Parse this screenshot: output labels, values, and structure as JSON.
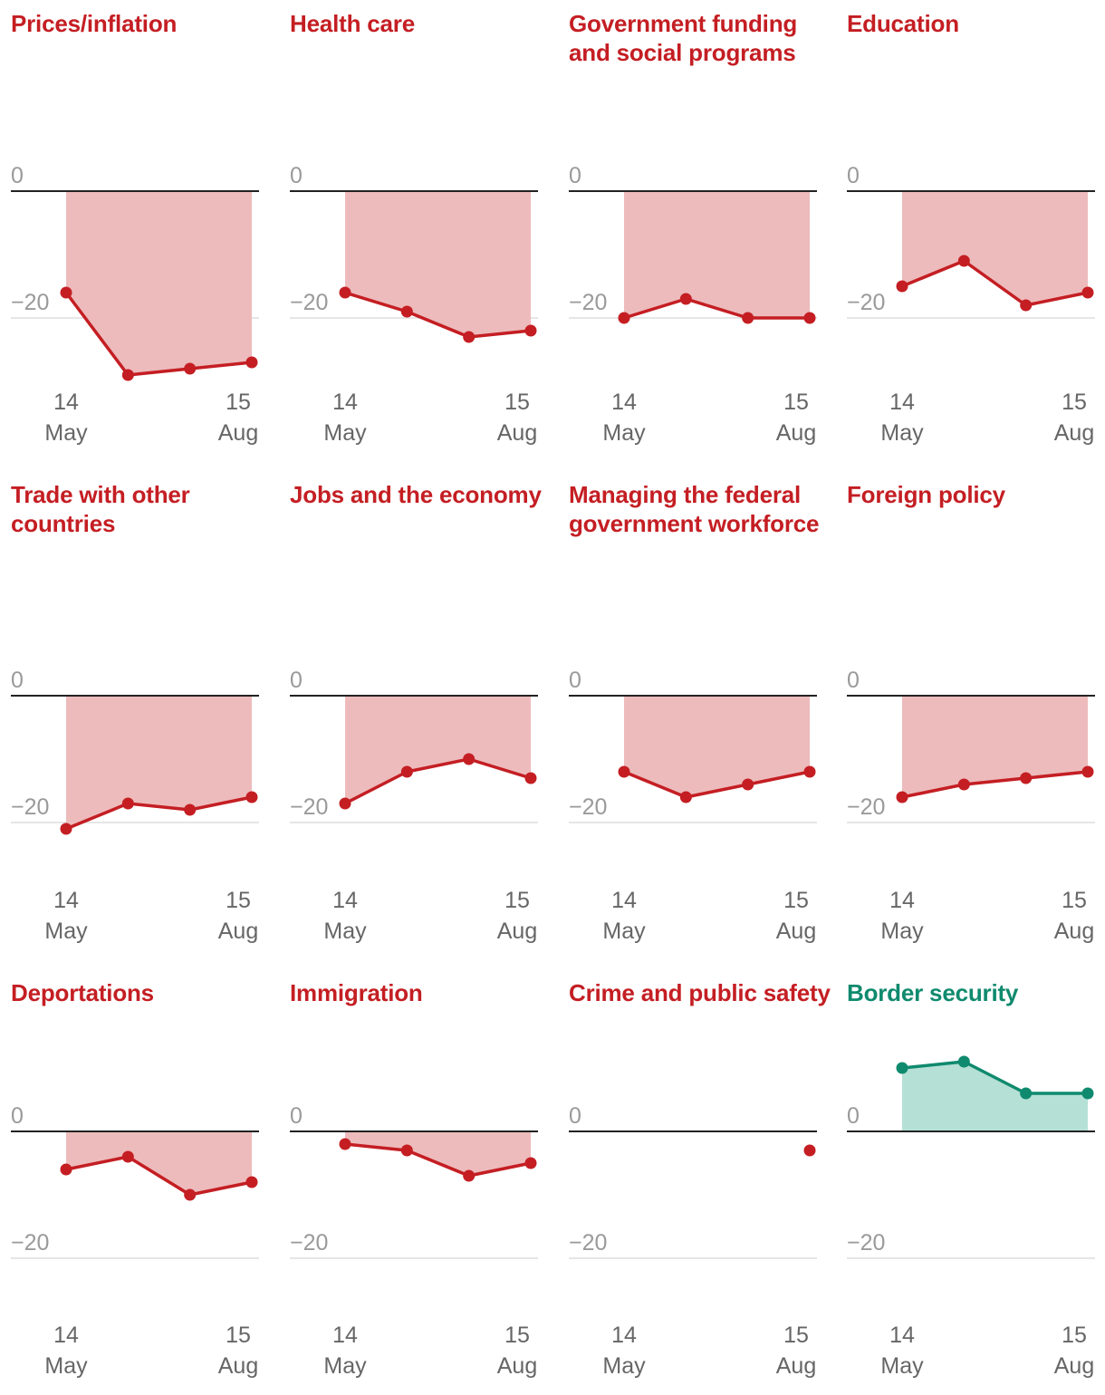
{
  "chart_data": [
    {
      "type": "area",
      "title": "Prices/inflation",
      "x": [
        "14 May",
        "",
        "",
        "15 Aug"
      ],
      "values": [
        -16,
        -29,
        -28,
        -27
      ],
      "y_ticks": [
        0,
        -20
      ],
      "x_tick_labels": [
        {
          "day": "14",
          "month": "May"
        },
        {
          "day": "15",
          "month": "Aug"
        }
      ],
      "color": "#c41e23",
      "fill": "#edbbbc"
    },
    {
      "type": "area",
      "title": "Health care",
      "x": [
        "14 May",
        "",
        "",
        "15 Aug"
      ],
      "values": [
        -16,
        -19,
        -23,
        -22
      ],
      "y_ticks": [
        0,
        -20
      ],
      "x_tick_labels": [
        {
          "day": "14",
          "month": "May"
        },
        {
          "day": "15",
          "month": "Aug"
        }
      ],
      "color": "#c41e23",
      "fill": "#edbbbc"
    },
    {
      "type": "area",
      "title": "Government funding and social programs",
      "x": [
        "14 May",
        "",
        "",
        "15 Aug"
      ],
      "values": [
        -20,
        -17,
        -20,
        -20
      ],
      "y_ticks": [
        0,
        -20
      ],
      "x_tick_labels": [
        {
          "day": "14",
          "month": "May"
        },
        {
          "day": "15",
          "month": "Aug"
        }
      ],
      "color": "#c41e23",
      "fill": "#edbbbc"
    },
    {
      "type": "area",
      "title": "Education",
      "x": [
        "14 May",
        "",
        "",
        "15 Aug"
      ],
      "values": [
        -15,
        -11,
        -18,
        -16
      ],
      "y_ticks": [
        0,
        -20
      ],
      "x_tick_labels": [
        {
          "day": "14",
          "month": "May"
        },
        {
          "day": "15",
          "month": "Aug"
        }
      ],
      "color": "#c41e23",
      "fill": "#edbbbc"
    },
    {
      "type": "area",
      "title": "Trade with other countries",
      "x": [
        "14 May",
        "",
        "",
        "15 Aug"
      ],
      "values": [
        -21,
        -17,
        -18,
        -16
      ],
      "y_ticks": [
        0,
        -20
      ],
      "x_tick_labels": [
        {
          "day": "14",
          "month": "May"
        },
        {
          "day": "15",
          "month": "Aug"
        }
      ],
      "color": "#c41e23",
      "fill": "#edbbbc"
    },
    {
      "type": "area",
      "title": "Jobs and the economy",
      "x": [
        "14 May",
        "",
        "",
        "15 Aug"
      ],
      "values": [
        -17,
        -12,
        -10,
        -13
      ],
      "y_ticks": [
        0,
        -20
      ],
      "x_tick_labels": [
        {
          "day": "14",
          "month": "May"
        },
        {
          "day": "15",
          "month": "Aug"
        }
      ],
      "color": "#c41e23",
      "fill": "#edbbbc"
    },
    {
      "type": "area",
      "title": "Managing the federal government workforce",
      "x": [
        "14 May",
        "",
        "",
        "15 Aug"
      ],
      "values": [
        -12,
        -16,
        -14,
        -12
      ],
      "y_ticks": [
        0,
        -20
      ],
      "x_tick_labels": [
        {
          "day": "14",
          "month": "May"
        },
        {
          "day": "15",
          "month": "Aug"
        }
      ],
      "color": "#c41e23",
      "fill": "#edbbbc"
    },
    {
      "type": "area",
      "title": "Foreign policy",
      "x": [
        "14 May",
        "",
        "",
        "15 Aug"
      ],
      "values": [
        -16,
        -14,
        -13,
        -12
      ],
      "y_ticks": [
        0,
        -20
      ],
      "x_tick_labels": [
        {
          "day": "14",
          "month": "May"
        },
        {
          "day": "15",
          "month": "Aug"
        }
      ],
      "color": "#c41e23",
      "fill": "#edbbbc"
    },
    {
      "type": "area",
      "title": "Deportations",
      "x": [
        "14 May",
        "",
        "",
        "15 Aug"
      ],
      "values": [
        -6,
        -4,
        -10,
        -8
      ],
      "y_ticks": [
        0,
        -20
      ],
      "x_tick_labels": [
        {
          "day": "14",
          "month": "May"
        },
        {
          "day": "15",
          "month": "Aug"
        }
      ],
      "color": "#c41e23",
      "fill": "#edbbbc"
    },
    {
      "type": "area",
      "title": "Immigration",
      "x": [
        "14 May",
        "",
        "",
        "15 Aug"
      ],
      "values": [
        -2,
        -3,
        -7,
        -5
      ],
      "y_ticks": [
        0,
        -20
      ],
      "x_tick_labels": [
        {
          "day": "14",
          "month": "May"
        },
        {
          "day": "15",
          "month": "Aug"
        }
      ],
      "color": "#c41e23",
      "fill": "#edbbbc"
    },
    {
      "type": "area",
      "title": "Crime and public safety",
      "x": [
        "14 May",
        "",
        "",
        "15 Aug"
      ],
      "values": [
        null,
        null,
        null,
        -3
      ],
      "y_ticks": [
        0,
        -20
      ],
      "x_tick_labels": [
        {
          "day": "14",
          "month": "May"
        },
        {
          "day": "15",
          "month": "Aug"
        }
      ],
      "color": "#c41e23",
      "fill": "#edbbbc"
    },
    {
      "type": "area",
      "title": "Border security",
      "x": [
        "14 May",
        "",
        "",
        "15 Aug"
      ],
      "values": [
        10,
        11,
        6,
        6
      ],
      "y_ticks": [
        0,
        -20
      ],
      "x_tick_labels": [
        {
          "day": "14",
          "month": "May"
        },
        {
          "day": "15",
          "month": "Aug"
        }
      ],
      "color": "#0f8a6e",
      "fill": "#b5e0d5"
    }
  ],
  "colors": {
    "negative_line": "#c41e23",
    "negative_fill": "#edbbbc",
    "positive_line": "#0f8a6e",
    "positive_fill": "#b5e0d5",
    "axis_text": "#9a9a9a",
    "x_tick_text": "#666666",
    "zero_line": "#222222",
    "grid_line": "#dddddd"
  }
}
